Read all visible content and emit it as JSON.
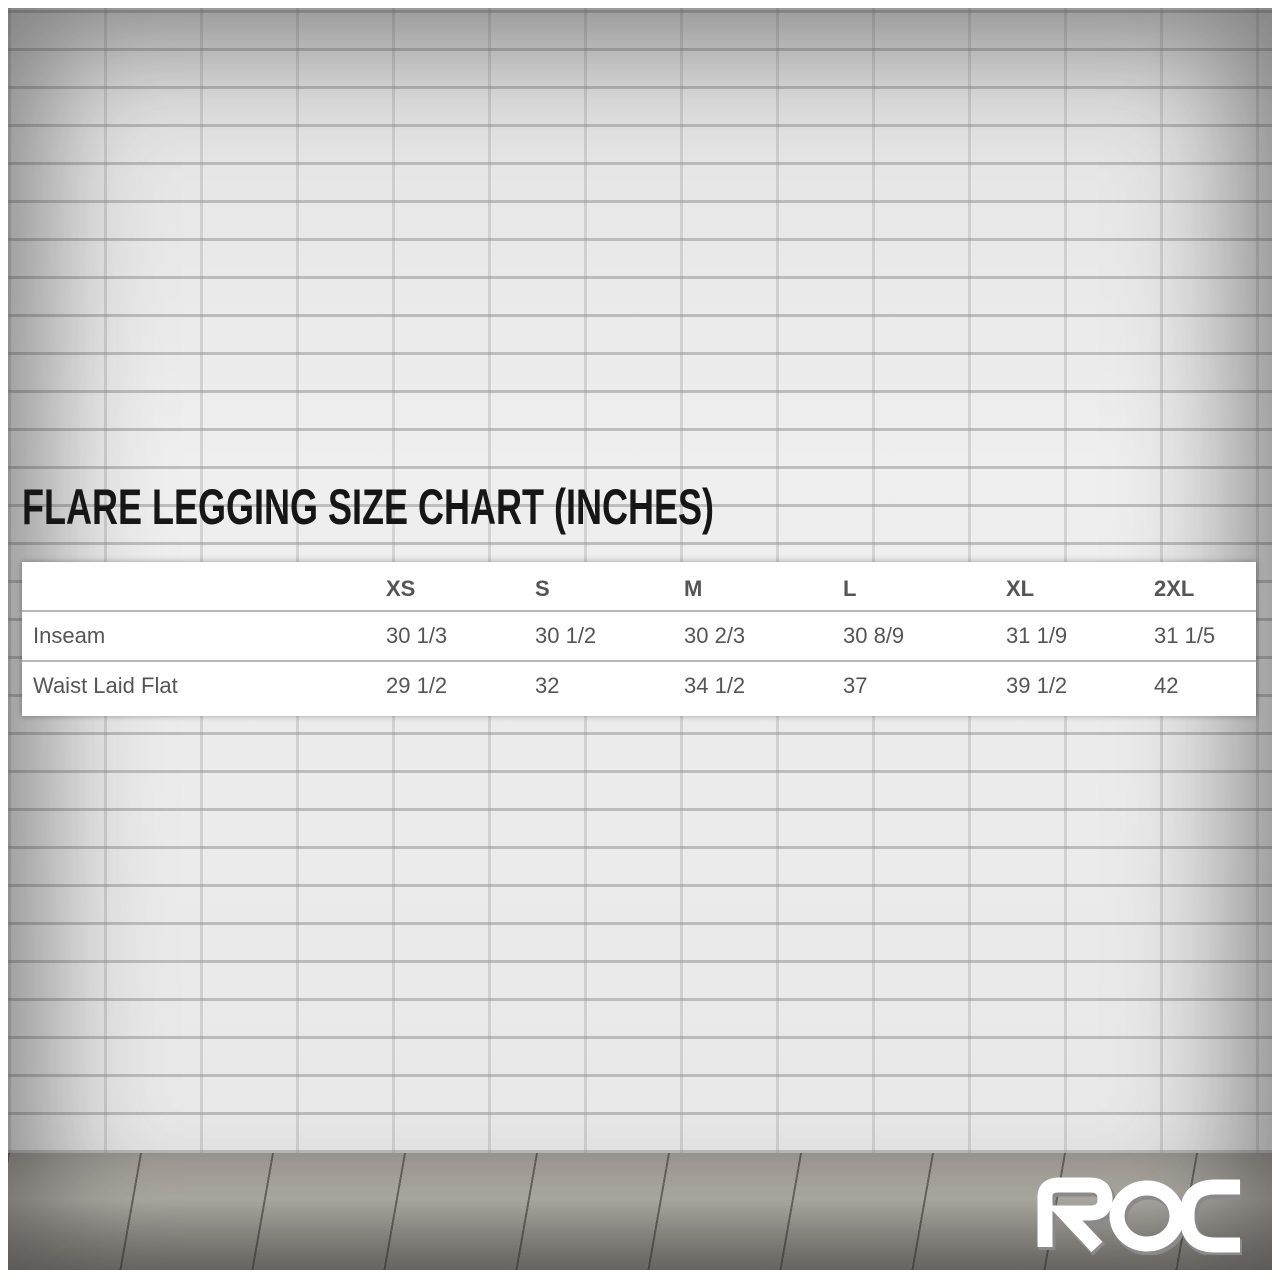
{
  "title": "Flare Legging Size Chart (Inches)",
  "table": {
    "columns": [
      "",
      "XS",
      "S",
      "M",
      "L",
      "XL",
      "2XL"
    ],
    "rows": [
      {
        "label": "Inseam",
        "values": [
          "30 1/3",
          "30 1/2",
          "30 2/3",
          "30 8/9",
          "31 1/9",
          "31 1/5"
        ]
      },
      {
        "label": "Waist Laid Flat",
        "values": [
          "29 1/2",
          "32",
          "34 1/2",
          "37",
          "39 1/2",
          "42"
        ]
      }
    ]
  },
  "logo": {
    "text": "ROC"
  }
}
